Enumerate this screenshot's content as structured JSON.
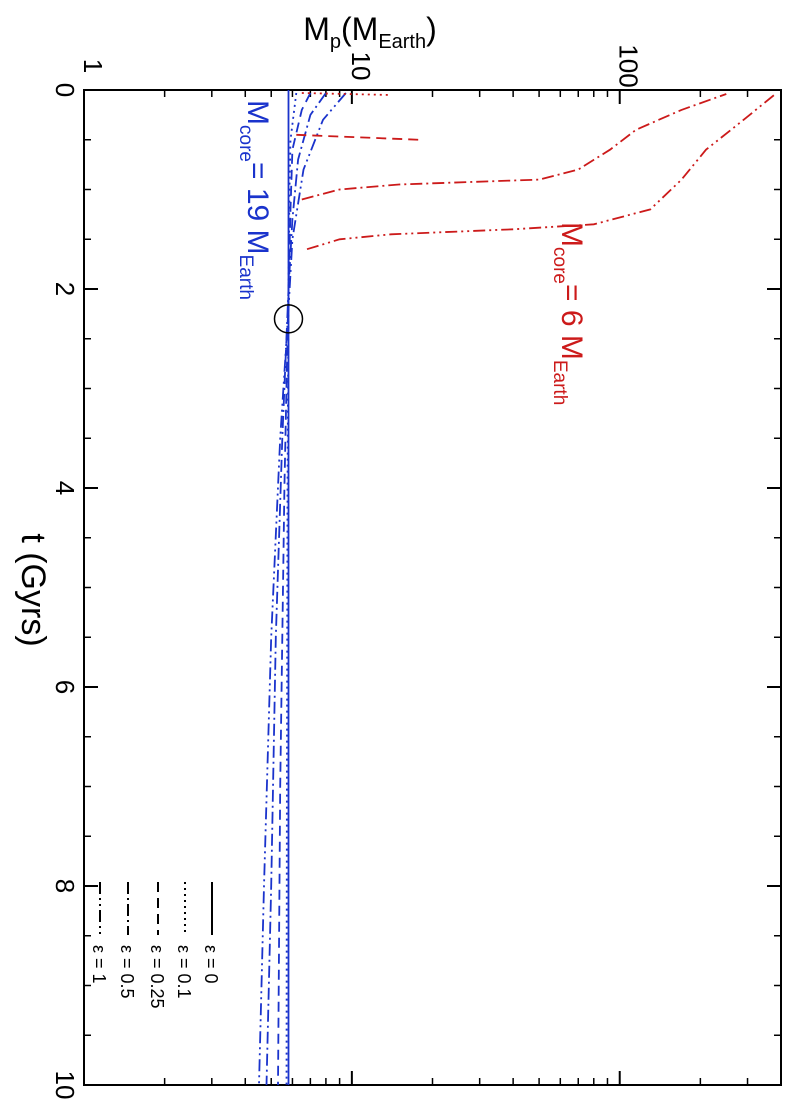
{
  "chart_data": {
    "type": "line",
    "orientation": "rotated-90-clockwise",
    "xlabel_main": "t (Gyrs)",
    "ylabel_main": "M",
    "ylabel_sub": "p",
    "ylabel_paren_open": "(M",
    "ylabel_unit_sub": "Earth",
    "ylabel_paren_close": ")",
    "x_axis": {
      "label": "t (Gyrs)",
      "range": [
        0,
        10
      ],
      "ticks": [
        "0",
        "2",
        "4",
        "6",
        "8",
        "10"
      ]
    },
    "y_axis": {
      "label": "Mp(MEarth)",
      "scale": "log",
      "range": [
        1,
        400
      ],
      "ticks": [
        "1",
        "10",
        "100"
      ]
    },
    "colors": {
      "core19": "#1a33cc",
      "core6": "#cc1a1a",
      "axis": "#000000"
    },
    "annotations": [
      {
        "id": "core19",
        "main": "M",
        "sub": "core",
        "mid": "= 19 M",
        "sub2": "Earth",
        "color": "#1a33cc"
      },
      {
        "id": "core6",
        "main": "M",
        "sub": "core",
        "mid": "= 6 M",
        "sub2": "Earth",
        "color": "#cc1a1a"
      }
    ],
    "legend": {
      "placement": "bottom-left",
      "entries": [
        {
          "label": "ε = 0",
          "dash": "solid"
        },
        {
          "label": "ε = 0.1",
          "dash": "dot"
        },
        {
          "label": "ε = 0.25",
          "dash": "dash"
        },
        {
          "label": "ε = 0.5",
          "dash": "dashdot"
        },
        {
          "label": "ε = 1",
          "dash": "dashdotdot"
        }
      ]
    },
    "marker": {
      "t": 2.3,
      "m": 5.8,
      "shape": "open-circle"
    },
    "series": [
      {
        "name": "ε = 0",
        "core": 19,
        "color": "#1a33cc",
        "dash": "solid",
        "x": [
          0,
          10
        ],
        "y": [
          5.8,
          5.8
        ]
      },
      {
        "name": "ε = 0.1",
        "core": 19,
        "color": "#1a33cc",
        "dash": "dot",
        "x": [
          0.03,
          0.5,
          1.0,
          2.0,
          4.0,
          7.0,
          10.0
        ],
        "y": [
          6.2,
          5.9,
          5.85,
          5.8,
          5.75,
          5.72,
          5.7
        ]
      },
      {
        "name": "ε = 0.25",
        "core": 19,
        "color": "#1a33cc",
        "dash": "dash",
        "x": [
          0.03,
          0.2,
          0.6,
          1.2,
          2.0,
          4.0,
          7.0,
          10.0
        ],
        "y": [
          7.0,
          6.5,
          6.0,
          5.9,
          5.8,
          5.6,
          5.4,
          5.3
        ]
      },
      {
        "name": "ε = 0.5",
        "core": 19,
        "color": "#1a33cc",
        "dash": "dashdot",
        "x": [
          0.03,
          0.25,
          0.7,
          1.3,
          2.0,
          3.5,
          5.5,
          8.0,
          10.0
        ],
        "y": [
          8.0,
          7.0,
          6.3,
          6.0,
          5.8,
          5.5,
          5.2,
          5.0,
          4.8
        ]
      },
      {
        "name": "ε = 1",
        "core": 19,
        "color": "#1a33cc",
        "dash": "dashdotdot",
        "x": [
          0.03,
          0.3,
          0.8,
          1.5,
          2.2,
          3.5,
          5.5,
          8.0,
          10.0
        ],
        "y": [
          9.5,
          7.8,
          6.6,
          6.0,
          5.8,
          5.4,
          5.0,
          4.7,
          4.5
        ]
      },
      {
        "name": "ε = 0.1",
        "core": 6,
        "color": "#cc1a1a",
        "dash": "dot",
        "x": [
          0.03,
          0.05
        ],
        "y": [
          6.5,
          14.0
        ]
      },
      {
        "name": "ε = 0.25",
        "core": 6,
        "color": "#cc1a1a",
        "dash": "dash",
        "x": [
          0.45,
          0.5
        ],
        "y": [
          6.2,
          18.0
        ]
      },
      {
        "name": "ε = 0.5",
        "core": 6,
        "color": "#cc1a1a",
        "dash": "dashdot",
        "x": [
          1.1,
          1.0,
          0.95,
          0.9,
          0.8,
          0.6,
          0.4,
          0.2,
          0.04
        ],
        "y": [
          6.5,
          9.0,
          15.0,
          50.0,
          70.0,
          92.0,
          115.0,
          170.0,
          250.0
        ]
      },
      {
        "name": "ε = 1",
        "core": 6,
        "color": "#cc1a1a",
        "dash": "dashdotdot",
        "x": [
          1.6,
          1.5,
          1.45,
          1.4,
          1.35,
          1.2,
          0.9,
          0.6,
          0.3,
          0.03
        ],
        "y": [
          6.8,
          9.0,
          14.0,
          40.0,
          80.0,
          130.0,
          170.0,
          210.0,
          290.0,
          385.0
        ]
      }
    ]
  }
}
